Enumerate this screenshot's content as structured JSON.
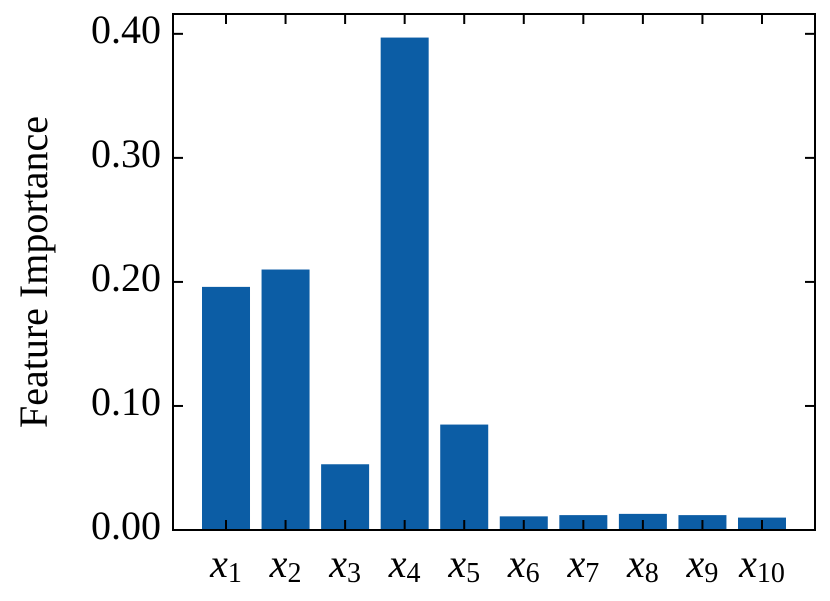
{
  "chart_data": {
    "type": "bar",
    "ylabel": "Feature Importance",
    "categories": [
      "x1",
      "x2",
      "x3",
      "x4",
      "x5",
      "x6",
      "x7",
      "x8",
      "x9",
      "x10"
    ],
    "values": [
      0.196,
      0.21,
      0.053,
      0.397,
      0.085,
      0.011,
      0.012,
      0.013,
      0.012,
      0.01
    ],
    "color": "#0c5da5",
    "ylim": [
      0,
      0.416
    ],
    "yticks": [
      {
        "value": 0,
        "label": "0.00"
      },
      {
        "value": 0.1,
        "label": "0.10"
      },
      {
        "value": 0.2,
        "label": "0.20"
      },
      {
        "value": 0.3,
        "label": "0.30"
      },
      {
        "value": 0.4,
        "label": "0.40"
      }
    ],
    "grid": false
  }
}
